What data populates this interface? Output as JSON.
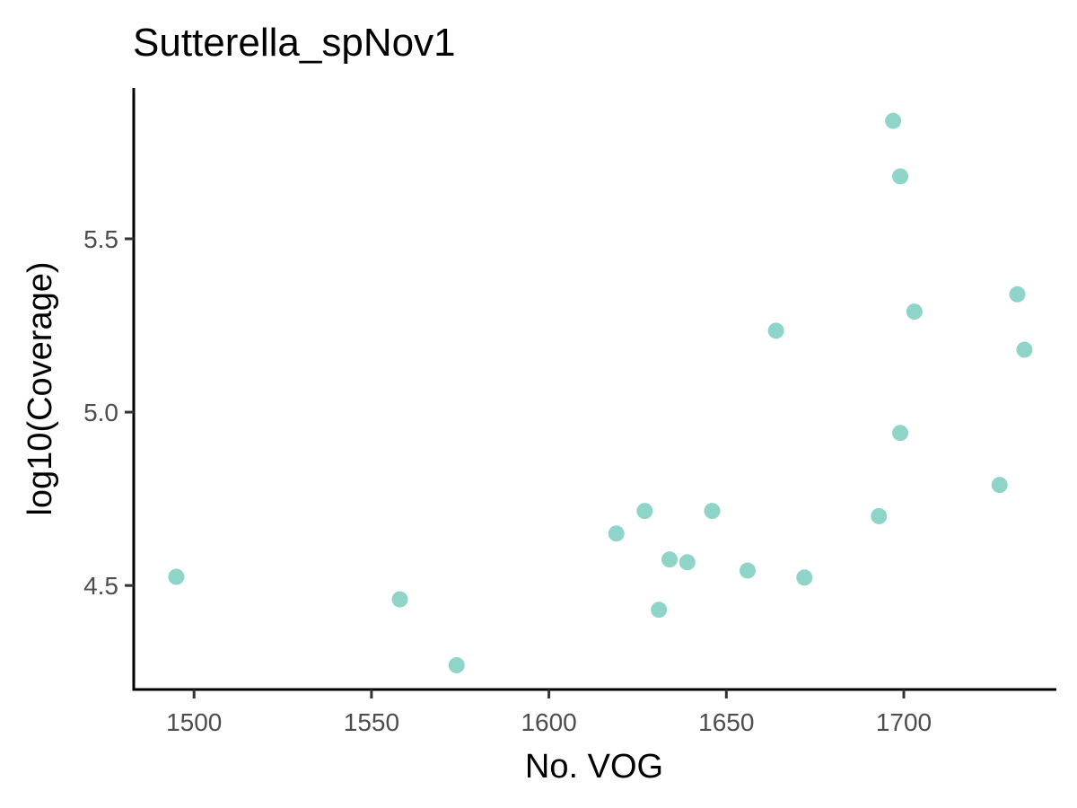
{
  "chart_data": {
    "type": "scatter",
    "title": "Sutterella_spNov1",
    "xlabel": "No. VOG",
    "ylabel": "log10(Coverage)",
    "xlim": [
      1483,
      1743
    ],
    "ylim": [
      4.2,
      5.935
    ],
    "x_ticks": [
      1500,
      1550,
      1600,
      1650,
      1700
    ],
    "x_tick_labels": [
      "1500",
      "1550",
      "1600",
      "1650",
      "1700"
    ],
    "y_ticks": [
      4.5,
      5.0,
      5.5
    ],
    "y_tick_labels": [
      "4.5",
      "5.0",
      "5.5"
    ],
    "grid": false,
    "legend": "none",
    "point_color": "#8FD4C8",
    "points": [
      {
        "x": 1495,
        "y": 4.525
      },
      {
        "x": 1558,
        "y": 4.46
      },
      {
        "x": 1574,
        "y": 4.27
      },
      {
        "x": 1619,
        "y": 4.65
      },
      {
        "x": 1627,
        "y": 4.715
      },
      {
        "x": 1631,
        "y": 4.43
      },
      {
        "x": 1634,
        "y": 4.575
      },
      {
        "x": 1639,
        "y": 4.567
      },
      {
        "x": 1646,
        "y": 4.715
      },
      {
        "x": 1656,
        "y": 4.543
      },
      {
        "x": 1664,
        "y": 5.235
      },
      {
        "x": 1672,
        "y": 4.523
      },
      {
        "x": 1693,
        "y": 4.7
      },
      {
        "x": 1697,
        "y": 5.84
      },
      {
        "x": 1699,
        "y": 5.68
      },
      {
        "x": 1699,
        "y": 4.94
      },
      {
        "x": 1703,
        "y": 5.29
      },
      {
        "x": 1727,
        "y": 4.79
      },
      {
        "x": 1732,
        "y": 5.34
      },
      {
        "x": 1734,
        "y": 5.18
      }
    ]
  }
}
